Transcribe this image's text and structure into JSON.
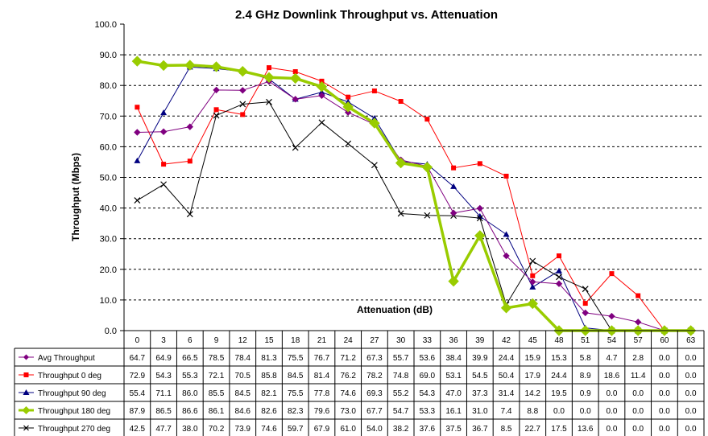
{
  "chart_data": {
    "type": "line",
    "title": "2.4 GHz Downlink Throughput vs. Attenuation",
    "xlabel": "Attenuation (dB)",
    "ylabel": "Throughput (Mbps)",
    "ylim": [
      0,
      100
    ],
    "y_ticks": [
      "0.0",
      "10.0",
      "20.0",
      "30.0",
      "40.0",
      "50.0",
      "60.0",
      "70.0",
      "80.0",
      "90.0",
      "100.0"
    ],
    "grid": "horizontal dashed",
    "categories": [
      "0",
      "3",
      "6",
      "9",
      "12",
      "15",
      "18",
      "21",
      "24",
      "27",
      "30",
      "33",
      "36",
      "39",
      "42",
      "45",
      "48",
      "51",
      "54",
      "57",
      "60",
      "63"
    ],
    "series": [
      {
        "name": "Avg Throughput",
        "color": "#800080",
        "marker": "diamond",
        "values": [
          64.7,
          64.9,
          66.5,
          78.5,
          78.4,
          81.3,
          75.5,
          76.7,
          71.2,
          67.3,
          55.7,
          53.6,
          38.4,
          39.9,
          24.4,
          15.9,
          15.3,
          5.8,
          4.7,
          2.8,
          0.0,
          0.0
        ]
      },
      {
        "name": "Throughput 0 deg",
        "color": "#ff0000",
        "marker": "square",
        "values": [
          72.9,
          54.3,
          55.3,
          72.1,
          70.5,
          85.8,
          84.5,
          81.4,
          76.2,
          78.2,
          74.8,
          69.0,
          53.1,
          54.5,
          50.4,
          17.9,
          24.4,
          8.9,
          18.6,
          11.4,
          0.0,
          0.0
        ]
      },
      {
        "name": "Throughput 90 deg",
        "color": "#000080",
        "marker": "triangle",
        "values": [
          55.4,
          71.1,
          86.0,
          85.5,
          84.5,
          82.1,
          75.5,
          77.8,
          74.6,
          69.3,
          55.2,
          54.3,
          47.0,
          37.3,
          31.4,
          14.2,
          19.5,
          0.9,
          0.0,
          0.0,
          0.0,
          0.0
        ]
      },
      {
        "name": "Throughput 180 deg",
        "color": "#99cc00",
        "marker": "diamond",
        "values": [
          87.9,
          86.5,
          86.6,
          86.1,
          84.6,
          82.6,
          82.3,
          79.6,
          73.0,
          67.7,
          54.7,
          53.3,
          16.1,
          31.0,
          7.4,
          8.8,
          0.0,
          0.0,
          0.0,
          0.0,
          0.0,
          0.0
        ]
      },
      {
        "name": "Throughput 270 deg",
        "color": "#000000",
        "marker": "x",
        "values": [
          42.5,
          47.7,
          38.0,
          70.2,
          73.9,
          74.6,
          59.7,
          67.9,
          61.0,
          54.0,
          38.2,
          37.6,
          37.5,
          36.7,
          8.5,
          22.7,
          17.5,
          13.6,
          0.0,
          0.0,
          0.0,
          0.0
        ]
      }
    ]
  }
}
